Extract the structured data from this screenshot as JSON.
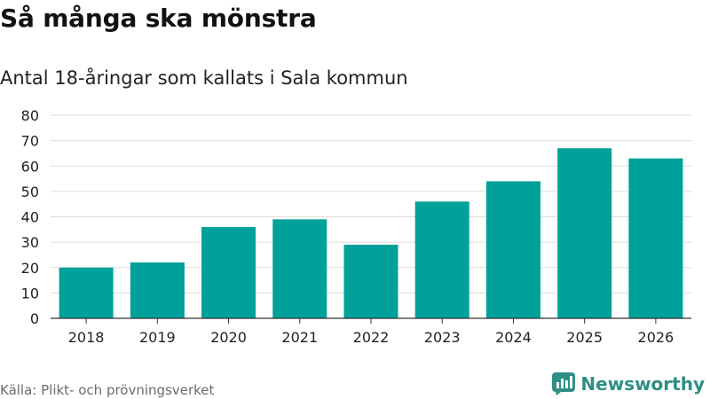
{
  "title": "Så många ska mönstra",
  "subtitle": "Antal 18-åringar som kallats i Sala kommun",
  "source": "Källa: Plikt- och prövningsverket",
  "brand": {
    "name": "Newsworthy",
    "icon": "newsworthy-logo-icon"
  },
  "colors": {
    "bar": "#00a19a",
    "grid": "#dddddd",
    "axis": "#333333",
    "brand": "#2f8f86"
  },
  "chart_data": {
    "type": "bar",
    "title": "Så många ska mönstra",
    "subtitle": "Antal 18-åringar som kallats i Sala kommun",
    "categories": [
      "2018",
      "2019",
      "2020",
      "2021",
      "2022",
      "2023",
      "2024",
      "2025",
      "2026"
    ],
    "values": [
      20,
      22,
      36,
      39,
      29,
      46,
      54,
      67,
      63
    ],
    "yticks": [
      0,
      10,
      20,
      30,
      40,
      50,
      60,
      70,
      80
    ],
    "ylim": [
      0,
      80
    ],
    "xlabel": "",
    "ylabel": "",
    "grid": true,
    "legend": "none"
  }
}
